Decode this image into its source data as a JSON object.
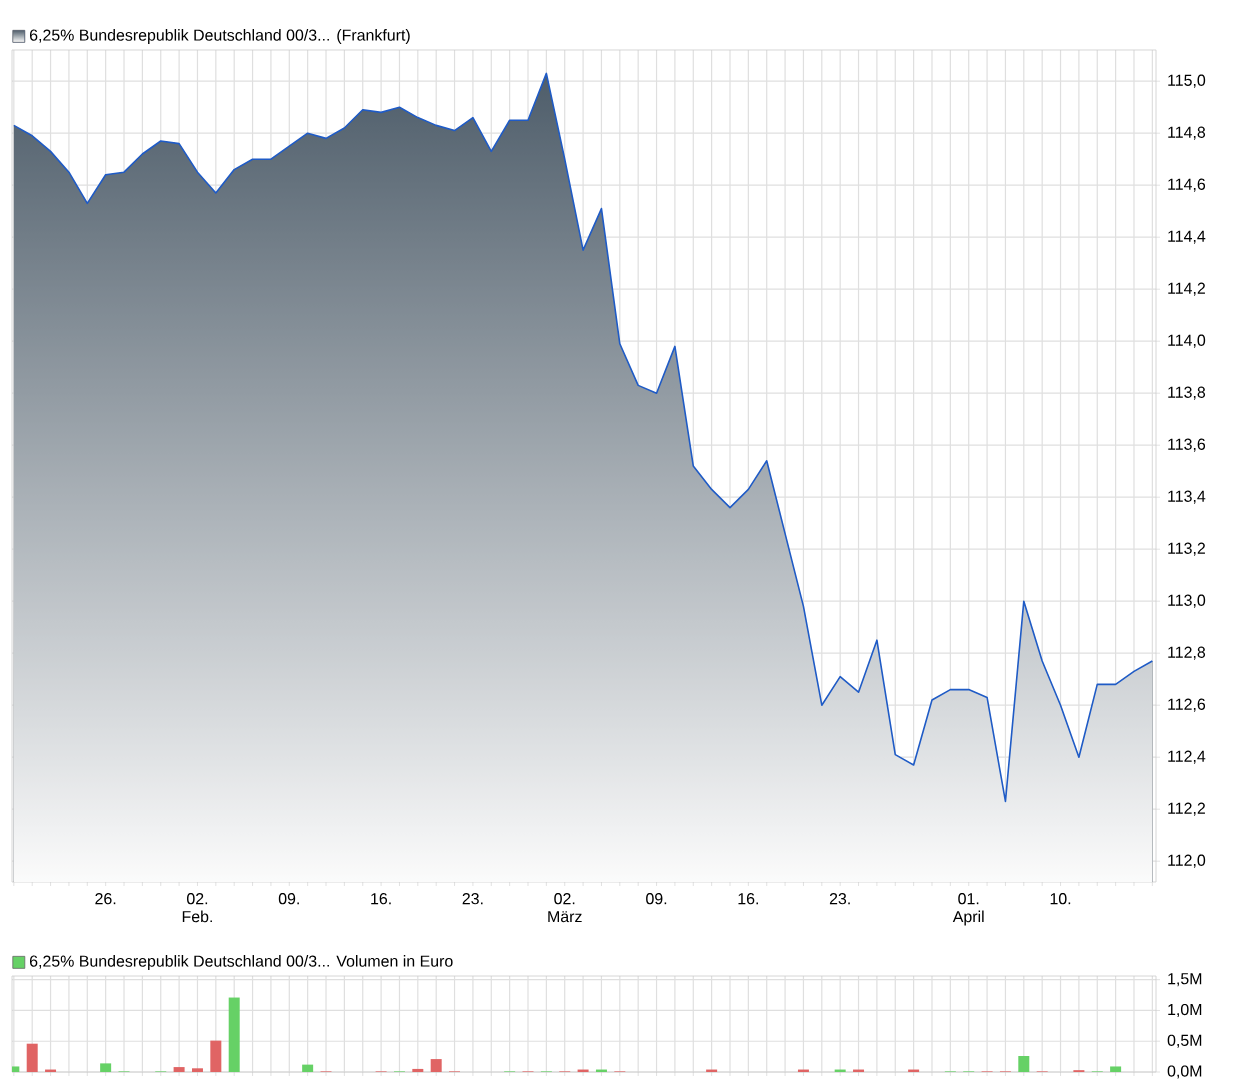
{
  "chart_data": [
    {
      "type": "area",
      "categories": [
        null,
        null,
        null,
        null,
        null,
        "26.",
        null,
        null,
        null,
        null,
        "02. Feb.",
        null,
        null,
        null,
        null,
        "09.",
        null,
        null,
        null,
        null,
        "16.",
        null,
        null,
        null,
        null,
        "23.",
        null,
        null,
        null,
        null,
        "02. März",
        null,
        null,
        null,
        null,
        "09.",
        null,
        null,
        null,
        null,
        "16.",
        null,
        null,
        null,
        null,
        "23.",
        null,
        null,
        null,
        null,
        null,
        null,
        "01. April",
        null,
        null,
        null,
        null,
        "10.",
        null,
        null,
        null,
        null,
        null
      ],
      "series": [
        {
          "name": "6,25% Bundesrepublik Deutschland 00/3... (Frankfurt)",
          "color": "#1f5bc6",
          "values": [
            114.83,
            114.79,
            114.73,
            114.65,
            114.53,
            114.64,
            114.65,
            114.72,
            114.77,
            114.76,
            114.65,
            114.57,
            114.66,
            114.7,
            114.7,
            114.75,
            114.8,
            114.78,
            114.82,
            114.89,
            114.88,
            114.9,
            114.86,
            114.83,
            114.81,
            114.86,
            114.73,
            114.85,
            114.85,
            115.03,
            114.7,
            114.35,
            114.51,
            113.99,
            113.83,
            113.8,
            113.98,
            113.52,
            113.43,
            113.36,
            113.43,
            113.54,
            113.26,
            112.98,
            112.6,
            112.71,
            112.65,
            112.85,
            112.41,
            112.37,
            112.62,
            112.66,
            112.66,
            112.63,
            112.23,
            113.0,
            112.77,
            112.6,
            112.4,
            112.68,
            112.68,
            112.73,
            112.77
          ]
        }
      ],
      "ylim": [
        111.92,
        115.12
      ],
      "yticks": [
        {
          "value": 112.0,
          "label": "112,0"
        },
        {
          "value": 112.2,
          "label": "112,2"
        },
        {
          "value": 112.4,
          "label": "112,4"
        },
        {
          "value": 112.6,
          "label": "112,6"
        },
        {
          "value": 112.8,
          "label": "112,8"
        },
        {
          "value": 113.0,
          "label": "113,0"
        },
        {
          "value": 113.2,
          "label": "113,2"
        },
        {
          "value": 113.4,
          "label": "113,4"
        },
        {
          "value": 113.6,
          "label": "113,6"
        },
        {
          "value": 113.8,
          "label": "113,8"
        },
        {
          "value": 114.0,
          "label": "114,0"
        },
        {
          "value": 114.2,
          "label": "114,2"
        },
        {
          "value": 114.4,
          "label": "114,4"
        },
        {
          "value": 114.6,
          "label": "114,6"
        },
        {
          "value": 114.8,
          "label": "114,8"
        },
        {
          "value": 115.0,
          "label": "115,0"
        }
      ],
      "grid": true,
      "legend": "top left"
    },
    {
      "type": "bar",
      "categories": [
        null,
        null,
        null,
        null,
        null,
        null,
        null,
        null,
        null,
        null,
        null,
        null,
        null,
        null,
        null,
        null,
        null,
        null,
        null,
        null,
        null,
        null,
        null,
        null,
        null,
        null,
        null,
        null,
        null,
        null,
        null,
        null,
        null,
        null,
        null,
        null,
        null,
        null,
        null,
        null,
        null,
        null,
        null,
        null,
        null,
        null,
        null,
        null,
        null,
        null,
        null,
        null,
        null,
        null,
        null,
        null,
        null,
        null,
        null,
        null,
        null,
        null,
        null
      ],
      "series": [
        {
          "name": "6,25% Bundesrepublik Deutschland 00/3... Volumen in Euro",
          "color": "#66d166",
          "values": [
            0.09,
            null,
            null,
            null,
            null,
            0.14,
            0.01,
            null,
            0.01,
            null,
            null,
            null,
            1.21,
            null,
            null,
            null,
            0.12,
            null,
            null,
            null,
            null,
            0.01,
            null,
            null,
            null,
            null,
            null,
            0.01,
            null,
            0.01,
            null,
            null,
            0.04,
            null,
            null,
            null,
            null,
            null,
            null,
            null,
            null,
            null,
            null,
            null,
            null,
            0.04,
            null,
            null,
            null,
            null,
            null,
            0.01,
            0.01,
            null,
            null,
            0.26,
            null,
            null,
            null,
            0.01,
            0.09,
            null,
            null
          ]
        },
        {
          "color": "#e06464",
          "values": [
            null,
            0.46,
            0.04,
            null,
            null,
            null,
            null,
            null,
            null,
            0.08,
            0.06,
            0.51,
            null,
            null,
            null,
            null,
            null,
            0.01,
            null,
            null,
            0.01,
            null,
            0.05,
            0.21,
            0.01,
            null,
            null,
            null,
            0.01,
            null,
            0.01,
            0.04,
            null,
            0.01,
            null,
            null,
            null,
            null,
            0.04,
            null,
            null,
            null,
            null,
            0.04,
            null,
            null,
            0.04,
            null,
            null,
            0.04,
            null,
            null,
            null,
            0.01,
            0.01,
            null,
            0.01,
            null,
            0.03,
            null,
            null,
            null,
            null
          ]
        }
      ],
      "ylim": [
        0,
        1.56
      ],
      "yticks": [
        {
          "value": 0,
          "label": "0,0M"
        },
        {
          "value": 0.5,
          "label": "0,5M"
        },
        {
          "value": 1.0,
          "label": "1,0M"
        },
        {
          "value": 1.5,
          "label": "1,5M"
        }
      ],
      "grid": true,
      "legend": "top left"
    }
  ]
}
